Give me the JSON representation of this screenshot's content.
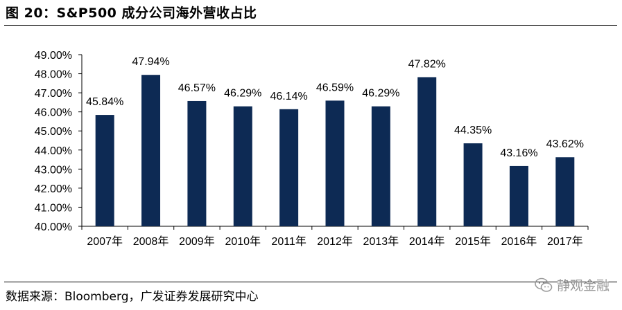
{
  "header": {
    "title": "图 20：S&P500 成分公司海外营收占比"
  },
  "footer": {
    "source": "数据来源：Bloomberg，广发证券发展研究中心",
    "watermark": "静观金融",
    "watermark_icon": "wechat-icon"
  },
  "colors": {
    "bar": "#0d2a54",
    "axis": "#000000"
  },
  "chart_data": {
    "type": "bar",
    "title": "",
    "xlabel": "",
    "ylabel": "",
    "ylim": [
      40,
      49
    ],
    "yticks": [
      "40.00%",
      "41.00%",
      "42.00%",
      "43.00%",
      "44.00%",
      "45.00%",
      "46.00%",
      "47.00%",
      "48.00%",
      "49.00%"
    ],
    "categories": [
      "2007年",
      "2008年",
      "2009年",
      "2010年",
      "2011年",
      "2012年",
      "2013年",
      "2014年",
      "2015年",
      "2016年",
      "2017年"
    ],
    "values": [
      45.84,
      47.94,
      46.57,
      46.29,
      46.14,
      46.59,
      46.29,
      47.82,
      44.35,
      43.16,
      43.62
    ],
    "value_labels": [
      "45.84%",
      "47.94%",
      "46.57%",
      "46.29%",
      "46.14%",
      "46.59%",
      "46.29%",
      "47.82%",
      "44.35%",
      "43.16%",
      "43.62%"
    ],
    "grid": false,
    "legend": "none"
  }
}
